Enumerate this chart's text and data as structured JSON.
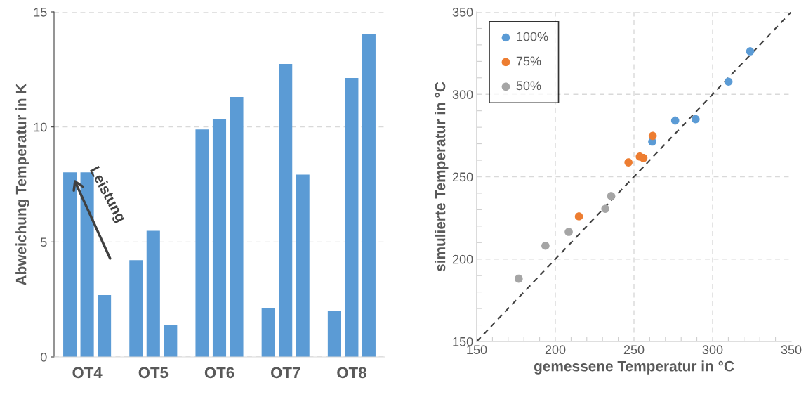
{
  "chart_data": [
    {
      "type": "bar",
      "ylabel": "Abweichung Temperatur in K",
      "categories": [
        "OT4",
        "OT5",
        "OT6",
        "OT7",
        "OT8"
      ],
      "series": [
        {
          "color": "#5b9bd5",
          "values": [
            8.03,
            4.21,
            9.89,
            2.11,
            2.02
          ]
        },
        {
          "color": "#5b9bd5",
          "values": [
            8.03,
            5.48,
            10.35,
            12.74,
            12.13
          ]
        },
        {
          "color": "#5b9bd5",
          "values": [
            2.69,
            1.38,
            11.3,
            7.93,
            14.04
          ]
        }
      ],
      "ylim": [
        0,
        15
      ],
      "yticks": [
        0,
        5,
        10,
        15
      ],
      "grid": "y",
      "annotations": [
        "Leistung"
      ]
    },
    {
      "type": "scatter",
      "xlabel": "gemessene Temperatur in °C",
      "ylabel": "simulierte Temperatur in °C",
      "series": [
        {
          "name": "100%",
          "color": "#5b9bd5",
          "x": [
            323.9,
            310.1,
            289.2,
            276.2,
            261.6
          ],
          "values": [
            326.1,
            307.7,
            284.9,
            284.1,
            271.3
          ]
        },
        {
          "name": "75%",
          "color": "#ed7d31",
          "x": [
            261.9,
            253.7,
            256.0,
            246.5,
            215.0
          ],
          "values": [
            274.8,
            262.2,
            261.4,
            258.7,
            225.9
          ]
        },
        {
          "name": "50%",
          "color": "#a5a5a5",
          "x": [
            235.5,
            231.8,
            208.5,
            193.7,
            176.7
          ],
          "values": [
            238.3,
            230.5,
            216.5,
            208.1,
            188.1
          ]
        },
        {
          "type": "line",
          "color": "#404040",
          "line_style": "dashed",
          "marker": "none",
          "x": [
            150,
            350
          ],
          "values": [
            150,
            350
          ]
        }
      ],
      "xlim": [
        150,
        350
      ],
      "ylim": [
        150,
        350
      ],
      "xticks": [
        150,
        {
          "value": 160,
          "label": null
        },
        {
          "value": 170,
          "label": null
        },
        {
          "value": 180,
          "label": null
        },
        {
          "value": 190,
          "label": null
        },
        200,
        {
          "value": 210,
          "label": null
        },
        {
          "value": 220,
          "label": null
        },
        {
          "value": 230,
          "label": null
        },
        {
          "value": 240,
          "label": null
        },
        250,
        {
          "value": 260,
          "label": null
        },
        {
          "value": 270,
          "label": null
        },
        {
          "value": 280,
          "label": null
        },
        {
          "value": 290,
          "label": null
        },
        300,
        {
          "value": 310,
          "label": null
        },
        {
          "value": 320,
          "label": null
        },
        {
          "value": 330,
          "label": null
        },
        {
          "value": 340,
          "label": null
        },
        350
      ],
      "yticks": [
        150,
        {
          "value": 160,
          "label": null
        },
        {
          "value": 170,
          "label": null
        },
        {
          "value": 180,
          "label": null
        },
        {
          "value": 190,
          "label": null
        },
        200,
        {
          "value": 210,
          "label": null
        },
        {
          "value": 220,
          "label": null
        },
        {
          "value": 230,
          "label": null
        },
        {
          "value": 240,
          "label": null
        },
        250,
        {
          "value": 260,
          "label": null
        },
        {
          "value": 270,
          "label": null
        },
        {
          "value": 280,
          "label": null
        },
        {
          "value": 290,
          "label": null
        },
        300,
        {
          "value": 310,
          "label": null
        },
        {
          "value": 320,
          "label": null
        },
        {
          "value": 330,
          "label": null
        },
        {
          "value": 340,
          "label": null
        },
        350
      ],
      "grid": true,
      "legend": "top left",
      "marker": "circle"
    }
  ]
}
